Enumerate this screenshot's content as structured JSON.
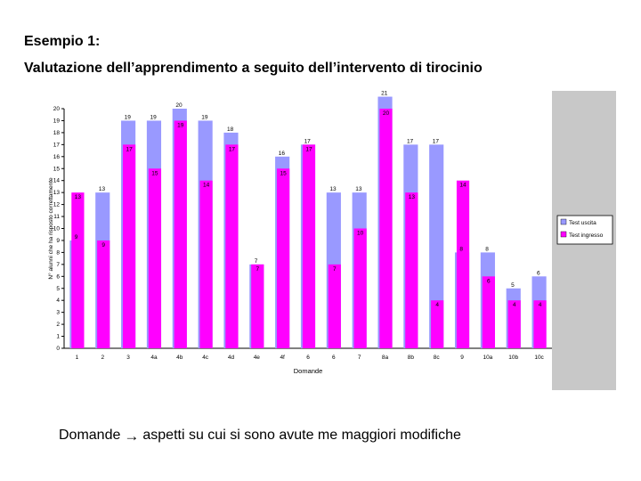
{
  "slide": {
    "heading": "Esempio 1:",
    "subheading": "Valutazione dell’apprendimento a seguito dell’intervento di tirocinio",
    "footer_term": "Domande",
    "footer_text": "aspetti su cui si sono avute me maggiori modifiche",
    "arrow_icon": "→"
  },
  "chart_data": {
    "type": "bar",
    "title": "",
    "xlabel": "Domande",
    "ylabel": "N° alunni che ha risposto correttamente",
    "ylim": [
      0,
      20
    ],
    "yticks": [
      "0",
      "1",
      "2",
      "3",
      "4",
      "5",
      "6",
      "7",
      "8",
      "9",
      "10",
      "11",
      "12",
      "13",
      "14",
      "15",
      "16",
      "17",
      "18",
      "19",
      "20"
    ],
    "categories": [
      "1",
      "2",
      "3",
      "4a",
      "4b",
      "4c",
      "4d",
      "4e",
      "4f",
      "6",
      "6",
      "7",
      "8a",
      "8b",
      "8c",
      "9",
      "10a",
      "10b",
      "10c"
    ],
    "series": [
      {
        "name": "Test uscita",
        "color": "#9999ff",
        "values": [
          9,
          13,
          19,
          19,
          20,
          19,
          18,
          7,
          16,
          17,
          13,
          13,
          21,
          17,
          17,
          8,
          8,
          5,
          6
        ]
      },
      {
        "name": "Test ingresso",
        "color": "#ff00ff",
        "values": [
          13,
          9,
          17,
          15,
          19,
          14,
          17,
          7,
          15,
          17,
          7,
          10,
          20,
          13,
          4,
          14,
          6,
          4,
          4
        ]
      }
    ],
    "data_labels": {
      "series1": [
        "9",
        "13",
        "19",
        "19",
        "20",
        "19",
        "18",
        "7",
        "16",
        "17",
        "13",
        "13",
        "21",
        "17",
        "17",
        "8",
        "8",
        "5",
        "6"
      ],
      "series2": [
        "13",
        "9",
        "17",
        "15",
        "19",
        "14",
        "17",
        "7",
        "15",
        "17",
        "7",
        "10",
        "20",
        "13",
        "4",
        "14",
        "6",
        "4",
        "4"
      ]
    },
    "legend_position": "right",
    "plot_background": "#ffffff",
    "panel_background": "#c8c8c8",
    "gridlines": false
  }
}
